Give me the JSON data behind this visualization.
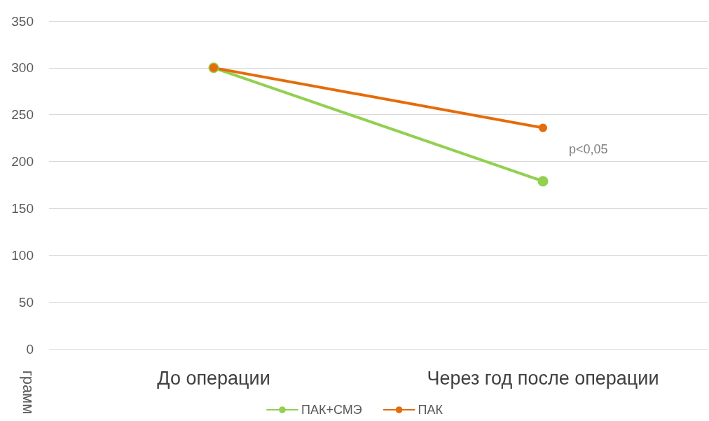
{
  "chart_data": {
    "type": "line",
    "ylabel": "грамм",
    "categories": [
      "До операции",
      "Через год после операции"
    ],
    "series": [
      {
        "name": "ПАК+СМЭ",
        "color": "#92d050",
        "values": [
          300,
          179
        ]
      },
      {
        "name": "ПАК",
        "color": "#e46c0a",
        "values": [
          300,
          236
        ]
      }
    ],
    "ylim": [
      0,
      350
    ],
    "yticks": [
      0,
      50,
      100,
      150,
      200,
      250,
      300,
      350
    ],
    "grid": "y",
    "legend": "bottom",
    "marker": "circle",
    "line_style": "solid",
    "annotations": [
      "p<0,05"
    ]
  }
}
